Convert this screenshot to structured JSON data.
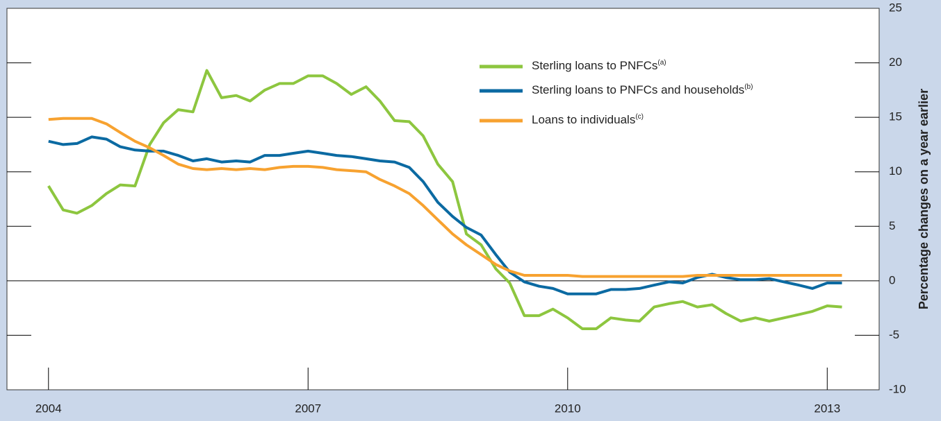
{
  "chart_data": {
    "type": "line",
    "y_axis_label": "Percentage changes on a year earlier",
    "axis_side": "right",
    "x": [
      2004,
      2004.17,
      2004.33,
      2004.5,
      2004.67,
      2004.83,
      2005,
      2005.17,
      2005.33,
      2005.5,
      2005.67,
      2005.83,
      2006,
      2006.17,
      2006.33,
      2006.5,
      2006.67,
      2006.83,
      2007,
      2007.17,
      2007.33,
      2007.5,
      2007.67,
      2007.83,
      2008,
      2008.17,
      2008.33,
      2008.5,
      2008.67,
      2008.83,
      2009,
      2009.17,
      2009.33,
      2009.5,
      2009.67,
      2009.83,
      2010,
      2010.17,
      2010.33,
      2010.5,
      2010.67,
      2010.83,
      2011,
      2011.17,
      2011.33,
      2011.5,
      2011.67,
      2011.83,
      2012,
      2012.17,
      2012.33,
      2012.5,
      2012.67,
      2012.83,
      2013,
      2013.17
    ],
    "series": [
      {
        "name": "Sterling loans to PNFCs",
        "note": "(a)",
        "color": "#8dc63f",
        "values": [
          8.7,
          6.5,
          6.2,
          6.9,
          8.0,
          8.8,
          8.7,
          12.5,
          14.5,
          15.7,
          15.5,
          19.3,
          16.8,
          17.0,
          16.5,
          17.5,
          18.1,
          18.1,
          18.8,
          18.8,
          18.1,
          17.1,
          17.8,
          16.5,
          14.7,
          14.6,
          13.3,
          10.7,
          9.1,
          4.3,
          3.3,
          1.1,
          -0.2,
          -3.2,
          -3.2,
          -2.6,
          -3.4,
          -4.4,
          -4.4,
          -3.4,
          -3.6,
          -3.7,
          -2.4,
          -2.1,
          -1.9,
          -2.4,
          -2.2,
          -3.0,
          -3.7,
          -3.4,
          -3.7,
          -3.4,
          -3.1,
          -2.8,
          -2.3,
          -2.4
        ]
      },
      {
        "name": "Sterling loans to PNFCs and households",
        "note": "(b)",
        "color": "#0b6aa2",
        "values": [
          12.8,
          12.5,
          12.6,
          13.2,
          13.0,
          12.3,
          12.0,
          11.9,
          11.9,
          11.5,
          11.0,
          11.2,
          10.9,
          11.0,
          10.9,
          11.5,
          11.5,
          11.7,
          11.9,
          11.7,
          11.5,
          11.4,
          11.2,
          11.0,
          10.9,
          10.4,
          9.1,
          7.2,
          5.9,
          4.9,
          4.2,
          2.4,
          0.8,
          -0.1,
          -0.5,
          -0.7,
          -1.2,
          -1.2,
          -1.2,
          -0.8,
          -0.8,
          -0.7,
          -0.4,
          -0.1,
          -0.2,
          0.3,
          0.6,
          0.3,
          0.1,
          0.1,
          0.2,
          -0.1,
          -0.4,
          -0.7,
          -0.2,
          -0.2
        ]
      },
      {
        "name": "Loans to individuals",
        "note": "(c)",
        "color": "#f7a230",
        "values": [
          14.8,
          14.9,
          14.9,
          14.9,
          14.4,
          13.6,
          12.8,
          12.2,
          11.5,
          10.7,
          10.3,
          10.2,
          10.3,
          10.2,
          10.3,
          10.2,
          10.4,
          10.5,
          10.5,
          10.4,
          10.2,
          10.1,
          10.0,
          9.3,
          8.7,
          8.0,
          6.9,
          5.6,
          4.3,
          3.3,
          2.4,
          1.5,
          0.9,
          0.5,
          0.5,
          0.5,
          0.5,
          0.4,
          0.4,
          0.4,
          0.4,
          0.4,
          0.4,
          0.4,
          0.4,
          0.5,
          0.5,
          0.5,
          0.5,
          0.5,
          0.5,
          0.5,
          0.5,
          0.5,
          0.5,
          0.5
        ]
      }
    ],
    "xlim": [
      2003.52,
      2013.6
    ],
    "xticks": [
      2004,
      2007,
      2010,
      2013
    ],
    "ylim": [
      -10,
      25
    ],
    "yticks": [
      -10,
      -5,
      0,
      5,
      10,
      15,
      20,
      25
    ],
    "grid": false,
    "legend": "top"
  }
}
